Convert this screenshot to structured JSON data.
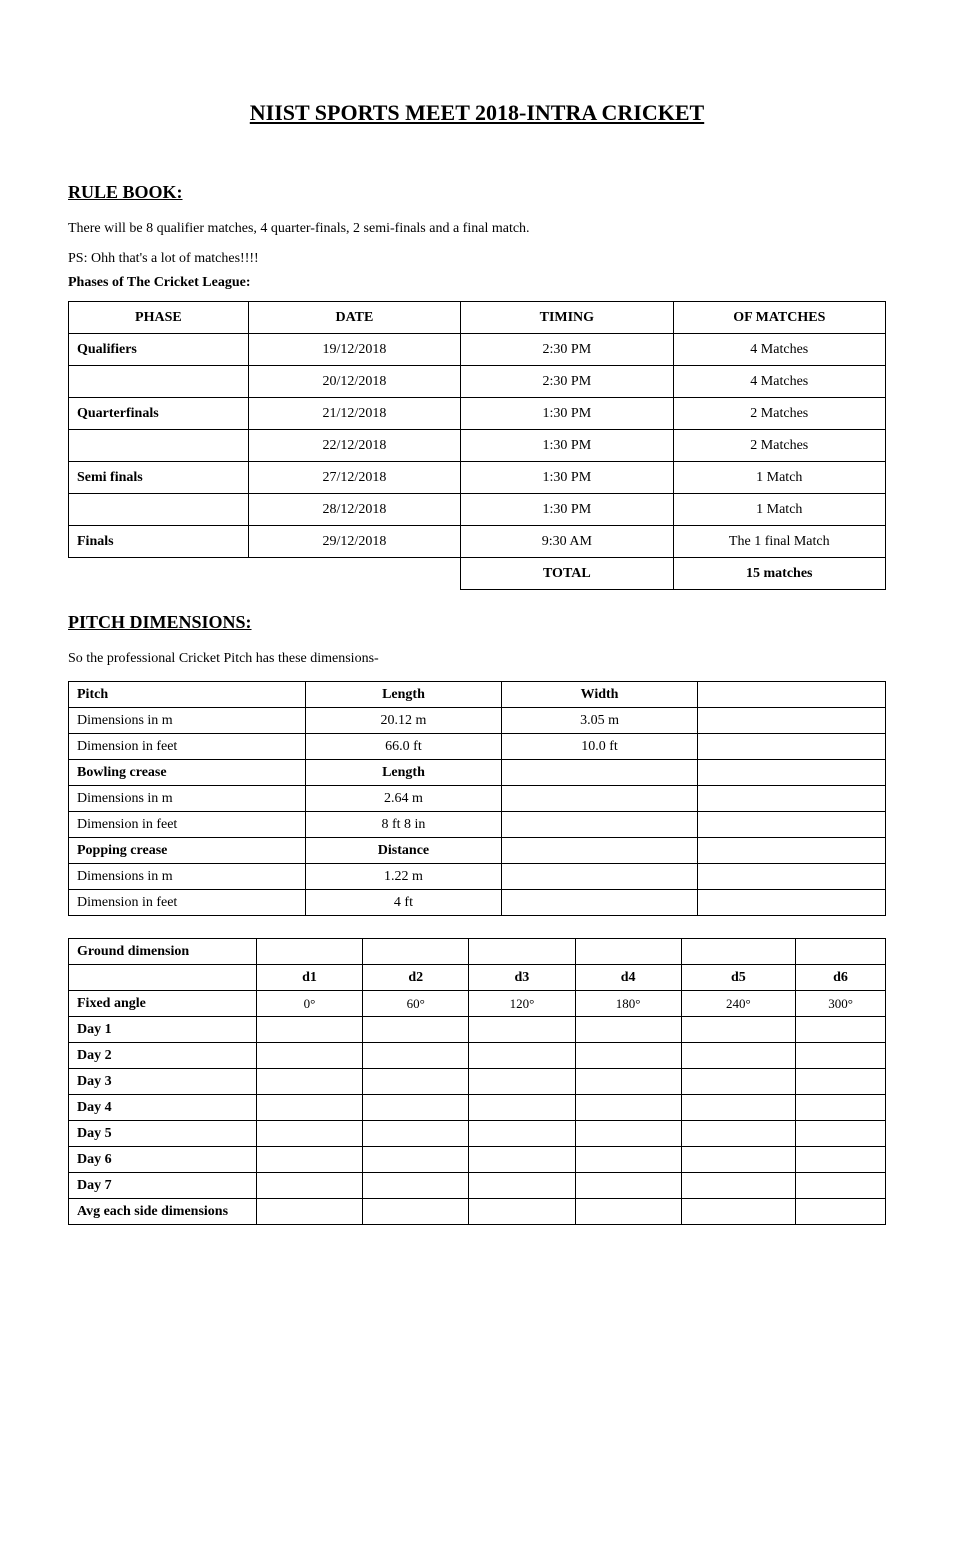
{
  "title": "NIIST SPORTS MEET 2018-INTRA CRICKET",
  "section1": {
    "heading": "RULE BOOK:",
    "intro1": "There will be 8 qualifier matches, 4 quarter-finals, 2 semi-finals and a final match.",
    "intro2": "PS: Ohh that's a lot of matches!!!!",
    "phases_heading": "Phases of The Cricket League:",
    "table": {
      "header": [
        "PHASE",
        "DATE",
        "TIMING",
        "OF MATCHES"
      ],
      "rows": [
        [
          "Qualifiers",
          "19/12/2018",
          "2:30 PM",
          "4 Matches"
        ],
        [
          "",
          "20/12/2018",
          "2:30 PM",
          "4 Matches"
        ],
        [
          "Quarterfinals",
          "21/12/2018",
          "1:30 PM",
          "2 Matches"
        ],
        [
          "",
          "22/12/2018",
          "1:30 PM",
          "2 Matches"
        ],
        [
          "Semi finals",
          "27/12/2018",
          "1:30 PM",
          "1 Match"
        ],
        [
          "",
          "28/12/2018",
          "1:30 PM",
          "1 Match"
        ],
        [
          "Finals",
          "29/12/2018",
          "9:30 AM",
          "The 1 final Match"
        ]
      ],
      "lastrow_col3": "TOTAL",
      "lastrow_col4": "15 matches"
    }
  },
  "section2": {
    "heading": "PITCH DIMENSIONS:",
    "intro": "So the professional Cricket Pitch has these dimensions-",
    "tableA": {
      "rows": [
        [
          "Pitch",
          "Length",
          "Width",
          ""
        ],
        [
          "Dimensions in m",
          "20.12 m",
          "3.05 m",
          ""
        ],
        [
          "Dimension in feet",
          "66.0 ft",
          "10.0 ft",
          ""
        ],
        [
          "Bowling crease",
          "Length",
          "",
          ""
        ],
        [
          "Dimensions in m",
          "2.64 m",
          "",
          ""
        ],
        [
          "Dimension in feet",
          "8 ft 8 in",
          "",
          ""
        ],
        [
          "Popping crease",
          "Distance",
          "",
          ""
        ],
        [
          "Dimensions in m",
          "1.22 m",
          "",
          ""
        ],
        [
          "Dimension in feet",
          "4 ft",
          "",
          ""
        ]
      ]
    },
    "tableB": {
      "rows": [
        [
          "Ground dimension",
          "",
          "",
          "",
          "",
          "",
          ""
        ],
        [
          "",
          "d1",
          "d2",
          "d3",
          "d4",
          "d5",
          "d6"
        ],
        [
          "Fixed angle",
          "0°",
          "60°",
          "120°",
          "180°",
          "240°",
          "300°"
        ],
        [
          "Day 1",
          "",
          "",
          "",
          "",
          "",
          ""
        ],
        [
          "Day 2",
          "",
          "",
          "",
          "",
          "",
          ""
        ],
        [
          "Day 3",
          "",
          "",
          "",
          "",
          "",
          ""
        ],
        [
          "Day 4",
          "",
          "",
          "",
          "",
          "",
          ""
        ],
        [
          "Day 5",
          "",
          "",
          "",
          "",
          "",
          ""
        ],
        [
          "Day 6",
          "",
          "",
          "",
          "",
          "",
          ""
        ],
        [
          "Day 7",
          "",
          "",
          "",
          "",
          "",
          ""
        ],
        [
          "Avg each side dimensions",
          "",
          "",
          "",
          "",
          "",
          ""
        ]
      ]
    }
  }
}
